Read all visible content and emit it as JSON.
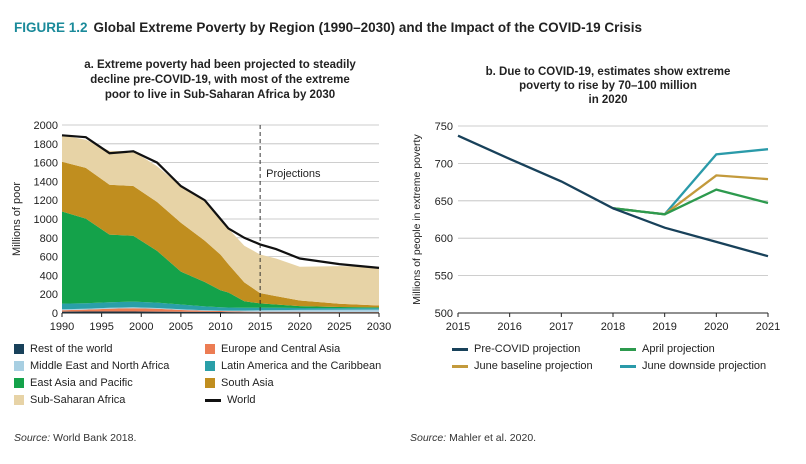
{
  "figure": {
    "number": "FIGURE 1.2",
    "title": "Global Extreme Poverty by Region (1990–2030) and the Impact of the COVID-19 Crisis"
  },
  "colors": {
    "rest_of_world": "#18415a",
    "europe_central_asia": "#ec7c53",
    "mideast_north_africa": "#a8cfe2",
    "latin_america": "#2a9fa8",
    "east_asia_pacific": "#14a24a",
    "south_asia": "#c08e1f",
    "sub_saharan_africa": "#e7d3a6",
    "world": "#111111",
    "pre_covid": "#18415a",
    "april": "#2d9a4e",
    "june_baseline": "#c39a3c",
    "june_downside": "#2a9aa9",
    "fig_number": "#1a8a9a"
  },
  "chart_data": [
    {
      "type": "area",
      "title": "a. Extreme poverty had been projected to steadily decline pre-COVID-19, with most of the extreme poor to live in Sub-Saharan Africa by 2030",
      "title_lines": [
        "a. Extreme poverty had been projected to steadily",
        "decline pre-COVID-19, with most of the extreme",
        "poor to live in Sub-Saharan Africa by 2030"
      ],
      "ylabel": "Millions of poor",
      "xlabel": "",
      "ylim": [
        0,
        2000
      ],
      "xlim": [
        1990,
        2030
      ],
      "yticks": [
        0,
        200,
        400,
        600,
        800,
        1000,
        1200,
        1400,
        1600,
        1800,
        2000
      ],
      "xticks": [
        1990,
        1995,
        2000,
        2005,
        2010,
        2015,
        2020,
        2025,
        2030
      ],
      "grid": true,
      "annotation": {
        "text": "Projections",
        "x": 2015
      },
      "x": [
        1990,
        1993,
        1996,
        1999,
        2002,
        2005,
        2008,
        2010,
        2011,
        2013,
        2015,
        2017,
        2020,
        2025,
        2030
      ],
      "series": [
        {
          "name": "Rest of the world",
          "key": "rest_of_world",
          "values": [
            15,
            16,
            16,
            16,
            15,
            14,
            12,
            11,
            10,
            9,
            8,
            8,
            8,
            7,
            7
          ]
        },
        {
          "name": "Europe and Central Asia",
          "key": "europe_central_asia",
          "values": [
            15,
            20,
            30,
            35,
            30,
            18,
            12,
            10,
            8,
            6,
            5,
            5,
            5,
            5,
            5
          ]
        },
        {
          "name": "Middle East and North Africa",
          "key": "mideast_north_africa",
          "values": [
            10,
            10,
            10,
            10,
            8,
            8,
            6,
            6,
            8,
            12,
            16,
            18,
            20,
            22,
            24
          ]
        },
        {
          "name": "Latin America and the Caribbean",
          "key": "latin_america",
          "values": [
            60,
            58,
            58,
            60,
            58,
            50,
            40,
            34,
            32,
            28,
            26,
            24,
            20,
            18,
            16
          ]
        },
        {
          "name": "East Asia and Pacific",
          "key": "east_asia_pacific",
          "values": [
            980,
            900,
            720,
            700,
            550,
            350,
            260,
            180,
            160,
            71,
            47,
            35,
            20,
            12,
            8
          ]
        },
        {
          "name": "South Asia",
          "key": "south_asia",
          "values": [
            530,
            540,
            530,
            530,
            520,
            520,
            440,
            380,
            300,
            200,
            110,
            90,
            60,
            35,
            20
          ]
        },
        {
          "name": "Sub-Saharan Africa",
          "key": "sub_saharan_africa",
          "values": [
            280,
            300,
            360,
            370,
            380,
            390,
            430,
            390,
            380,
            390,
            410,
            400,
            360,
            400,
            410
          ]
        }
      ],
      "world": {
        "name": "World",
        "key": "world",
        "values": [
          1890,
          1870,
          1700,
          1720,
          1600,
          1350,
          1200,
          1000,
          900,
          800,
          730,
          680,
          580,
          520,
          480
        ]
      },
      "legend_order": [
        "Rest of the world",
        "Europe and Central Asia",
        "Middle East and North Africa",
        "Latin America and the Caribbean",
        "East Asia and Pacific",
        "South Asia",
        "Sub-Saharan Africa",
        "World"
      ]
    },
    {
      "type": "line",
      "title": "b. Due to COVID-19, estimates show extreme poverty to rise by 70–100 million in 2020",
      "title_lines": [
        "b. Due to COVID-19, estimates show extreme",
        "poverty to rise by 70–100 million",
        "in 2020"
      ],
      "ylabel": "Millions of people in extreme poverty",
      "xlabel": "",
      "ylim": [
        500,
        750
      ],
      "xlim": [
        2015,
        2021
      ],
      "yticks": [
        500,
        550,
        600,
        650,
        700,
        750
      ],
      "xticks": [
        2015,
        2016,
        2017,
        2018,
        2019,
        2020,
        2021
      ],
      "grid": true,
      "series": [
        {
          "name": "Pre-COVID projection",
          "key": "pre_covid",
          "x": [
            2015,
            2016,
            2017,
            2018,
            2019,
            2020,
            2021
          ],
          "values": [
            737,
            706,
            676,
            640,
            614,
            595,
            576
          ]
        },
        {
          "name": "April projection",
          "key": "april",
          "x": [
            2018,
            2019,
            2020,
            2021
          ],
          "values": [
            640,
            632,
            665,
            647
          ]
        },
        {
          "name": "June baseline projection",
          "key": "june_baseline",
          "x": [
            2018,
            2019,
            2020,
            2021
          ],
          "values": [
            640,
            632,
            684,
            679
          ]
        },
        {
          "name": "June downside projection",
          "key": "june_downside",
          "x": [
            2018,
            2019,
            2020,
            2021
          ],
          "values": [
            640,
            632,
            712,
            719
          ]
        }
      ],
      "legend_order": [
        "Pre-COVID projection",
        "April projection",
        "June baseline projection",
        "June downside projection"
      ]
    }
  ],
  "sources": {
    "label": "Source:",
    "left": "World Bank 2018.",
    "right": "Mahler et al. 2020."
  }
}
